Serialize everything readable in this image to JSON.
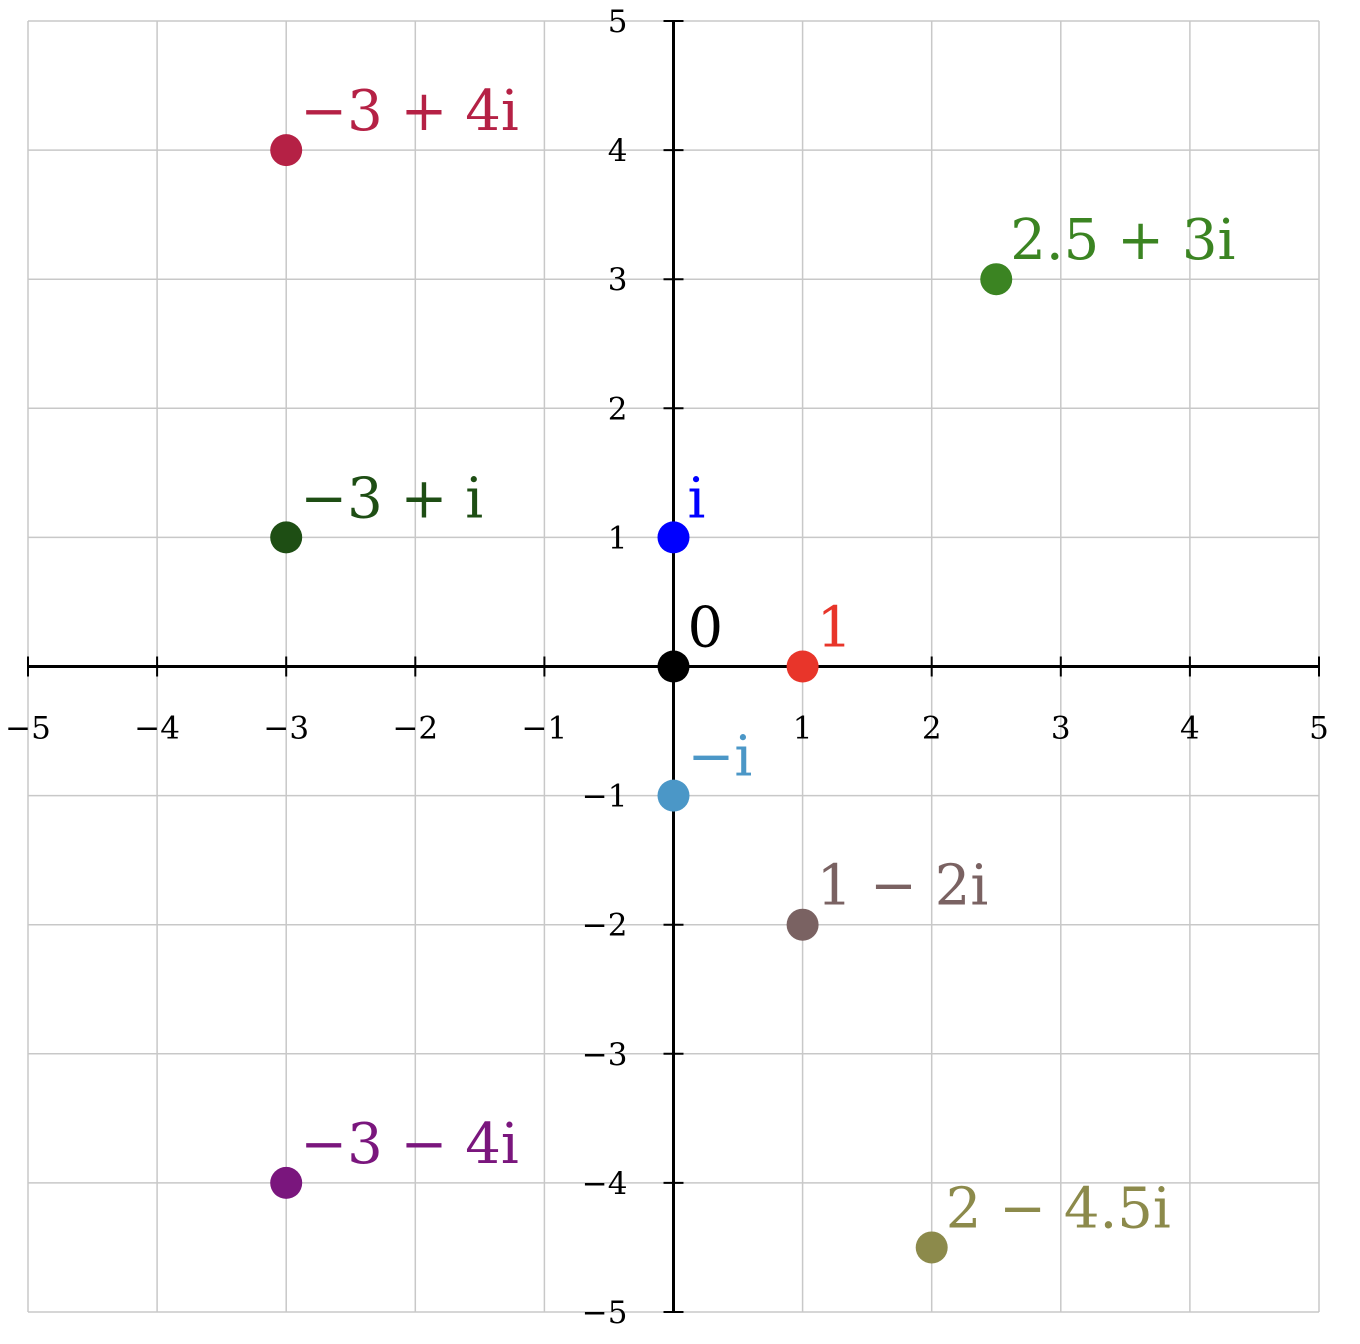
{
  "chart_data": {
    "type": "scatter",
    "title": "",
    "xlabel": "",
    "ylabel": "",
    "xlim": [
      -5,
      5
    ],
    "ylim": [
      -5,
      5
    ],
    "grid": true,
    "x_ticks": [
      -5,
      -4,
      -3,
      -2,
      -1,
      1,
      2,
      3,
      4,
      5
    ],
    "y_ticks": [
      -5,
      -4,
      -3,
      -2,
      -1,
      1,
      2,
      3,
      4,
      5
    ],
    "x_tick_labels": [
      "−5",
      "−4",
      "−3",
      "−2",
      "−1",
      "1",
      "2",
      "3",
      "4",
      "5"
    ],
    "y_tick_labels": [
      "−5",
      "−4",
      "−3",
      "−2",
      "−1",
      "1",
      "2",
      "3",
      "4",
      "5"
    ],
    "points": [
      {
        "label": "0",
        "x": 0,
        "y": 0,
        "color": "#000000"
      },
      {
        "label": "1",
        "x": 1,
        "y": 0,
        "color": "#e8352a"
      },
      {
        "label": "i",
        "x": 0,
        "y": 1,
        "color": "#0000ff"
      },
      {
        "label": "−i",
        "x": 0,
        "y": -1,
        "color": "#4b97c7"
      },
      {
        "label": "−3 + 4i",
        "x": -3,
        "y": 4,
        "color": "#b52145"
      },
      {
        "label": "2.5 + 3i",
        "x": 2.5,
        "y": 3,
        "color": "#3b8422"
      },
      {
        "label": "−3 + i",
        "x": -3,
        "y": 1,
        "color": "#1e4e14"
      },
      {
        "label": "1 − 2i",
        "x": 1,
        "y": -2,
        "color": "#7a6262"
      },
      {
        "label": "−3 − 4i",
        "x": -3,
        "y": -4,
        "color": "#7a167d"
      },
      {
        "label": "2 − 4.5i",
        "x": 2,
        "y": -4.5,
        "color": "#8c8a4b"
      }
    ]
  }
}
